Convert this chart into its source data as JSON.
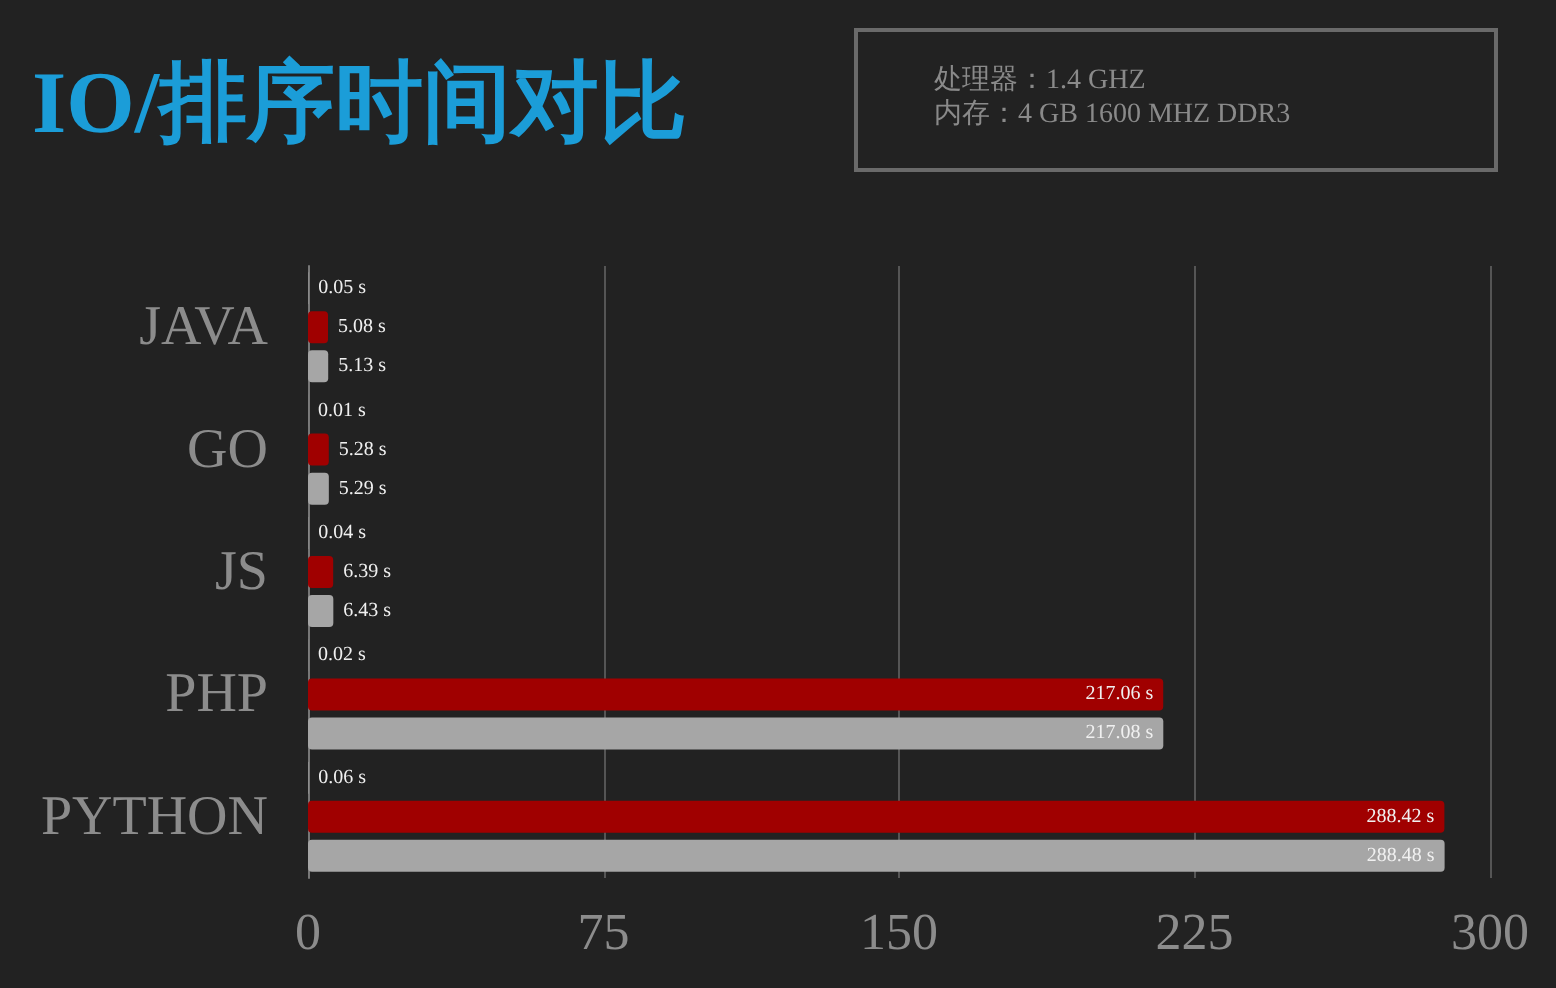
{
  "chart_data": {
    "type": "bar",
    "orientation": "horizontal",
    "title": "IO/排序时间对比",
    "annotations": [
      "处理器：1.4 GHZ",
      "内存：4 GB 1600 MHZ DDR3"
    ],
    "categories": [
      "JAVA",
      "GO",
      "JS",
      "PHP",
      "PYTHON"
    ],
    "series": [
      {
        "color": "#d9d9d9",
        "values": [
          0.05,
          0.01,
          0.04,
          0.02,
          0.06
        ],
        "value_labels": [
          "0.05 s",
          "0.01 s",
          "0.04 s",
          "0.02 s",
          "0.06 s"
        ]
      },
      {
        "color": "#a00000",
        "values": [
          5.08,
          5.28,
          6.39,
          217.06,
          288.42
        ],
        "value_labels": [
          "5.08 s",
          "5.28 s",
          "6.39 s",
          "217.06 s",
          "288.42 s"
        ]
      },
      {
        "color": "#a6a6a6",
        "values": [
          5.13,
          5.29,
          6.43,
          217.08,
          288.48
        ],
        "value_labels": [
          "5.13 s",
          "5.29 s",
          "6.43 s",
          "217.08 s",
          "288.48 s"
        ]
      }
    ],
    "xlim": [
      0,
      300
    ],
    "xticks": [
      0,
      75,
      150,
      225,
      300
    ],
    "grid": "x"
  }
}
